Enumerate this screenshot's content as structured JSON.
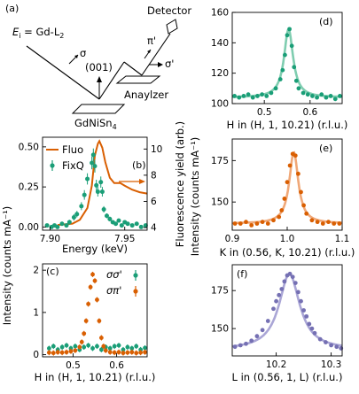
{
  "colors": {
    "green": "#1a9e77",
    "orange": "#d95f02",
    "purple": "#7570b3",
    "fit_green": "#7fcdb0",
    "fit_orange": "#f0a878",
    "fit_purple": "#aaa6d6"
  },
  "diagram": {
    "label": "(a)",
    "ei_label": "E",
    "ei_sub": "i",
    "ei_rest": " = Gd-L",
    "ei_sub2": "2",
    "sigma": "σ",
    "reflection": "(001)",
    "pi_prime": "π'",
    "sigma_prime": "σ'",
    "detector": "Detector",
    "analyzer": "Anaylzer",
    "sample": "GdNiSn",
    "sample_sub": "4"
  },
  "chart_data": [
    {
      "id": "b",
      "type": "line",
      "panel_label": "(b)",
      "xlabel": "Energy (keV)",
      "ylabel": "Intensity (counts mA⁻¹)",
      "ylabel2": "Fluorescence yield (arb.)",
      "xlim": [
        7.895,
        7.965
      ],
      "ylim": [
        -0.02,
        0.56
      ],
      "y2lim": [
        3.8,
        10.9
      ],
      "xticks": [
        "7.90",
        "7.95"
      ],
      "xtick_values": [
        7.9,
        7.95
      ],
      "yticks": [
        "0.00",
        "0.25",
        "0.50"
      ],
      "ytick_values": [
        0.0,
        0.25,
        0.5
      ],
      "y2ticks": [
        "4",
        "6",
        "8",
        "10"
      ],
      "y2tick_values": [
        4,
        6,
        8,
        10
      ],
      "legend": [
        "Fluo",
        "FixQ"
      ],
      "series": [
        {
          "name": "Fluo",
          "axis": "right",
          "x": [
            7.905,
            7.915,
            7.92,
            7.925,
            7.928,
            7.93,
            7.932,
            7.933,
            7.935,
            7.937,
            7.94,
            7.943,
            7.947,
            7.95,
            7.955,
            7.96,
            7.965
          ],
          "y": [
            4.2,
            4.3,
            4.6,
            5.5,
            7.2,
            9.5,
            10.4,
            10.6,
            10.1,
            9.0,
            7.8,
            7.4,
            7.4,
            7.2,
            6.9,
            6.7,
            6.6
          ]
        },
        {
          "name": "FixQ",
          "axis": "left",
          "x": [
            7.898,
            7.901,
            7.903,
            7.905,
            7.908,
            7.911,
            7.913,
            7.916,
            7.918,
            7.921,
            7.923,
            7.925,
            7.928,
            7.929,
            7.93,
            7.931,
            7.932,
            7.934,
            7.935,
            7.936,
            7.938,
            7.94,
            7.942,
            7.944,
            7.946,
            7.948,
            7.95,
            7.952,
            7.955,
            7.958,
            7.961,
            7.964
          ],
          "y": [
            0.01,
            0.0,
            0.01,
            0.0,
            0.02,
            0.01,
            0.03,
            0.06,
            0.08,
            0.13,
            0.2,
            0.3,
            0.4,
            0.45,
            0.38,
            0.26,
            0.22,
            0.28,
            0.22,
            0.11,
            0.07,
            0.05,
            0.03,
            0.02,
            0.04,
            0.01,
            0.03,
            0.02,
            0.01,
            0.02,
            0.0,
            0.01
          ],
          "err": [
            0.01,
            0.01,
            0.01,
            0.01,
            0.01,
            0.01,
            0.015,
            0.02,
            0.02,
            0.025,
            0.03,
            0.035,
            0.04,
            0.04,
            0.04,
            0.035,
            0.03,
            0.035,
            0.03,
            0.02,
            0.015,
            0.015,
            0.01,
            0.01,
            0.01,
            0.01,
            0.01,
            0.01,
            0.01,
            0.01,
            0.01,
            0.01
          ]
        }
      ]
    },
    {
      "id": "c",
      "type": "scatter",
      "panel_label": "(c)",
      "xlabel": "H in (H, 1, 10.21) (r.l.u.)",
      "ylabel": "Intensity (counts mA⁻¹)",
      "xlim": [
        0.43,
        0.67
      ],
      "ylim": [
        -0.05,
        2.15
      ],
      "xticks": [
        "0.5",
        "0.6"
      ],
      "xtick_values": [
        0.5,
        0.6
      ],
      "yticks": [
        "0",
        "1",
        "2"
      ],
      "ytick_values": [
        0,
        1,
        2
      ],
      "legend": [
        "σσ'",
        "σπ'"
      ],
      "series": [
        {
          "name": "σσ'",
          "x": [
            0.445,
            0.455,
            0.465,
            0.475,
            0.485,
            0.495,
            0.505,
            0.515,
            0.525,
            0.535,
            0.545,
            0.555,
            0.565,
            0.575,
            0.585,
            0.595,
            0.605,
            0.615,
            0.625,
            0.635,
            0.645,
            0.655,
            0.665
          ],
          "y": [
            0.15,
            0.2,
            0.12,
            0.18,
            0.22,
            0.15,
            0.2,
            0.12,
            0.18,
            0.22,
            0.15,
            0.2,
            0.12,
            0.18,
            0.15,
            0.2,
            0.22,
            0.12,
            0.18,
            0.15,
            0.2,
            0.12,
            0.16
          ]
        },
        {
          "name": "σπ'",
          "x": [
            0.445,
            0.455,
            0.465,
            0.475,
            0.485,
            0.495,
            0.505,
            0.515,
            0.52,
            0.525,
            0.53,
            0.535,
            0.54,
            0.545,
            0.55,
            0.555,
            0.56,
            0.565,
            0.57,
            0.575,
            0.585,
            0.595,
            0.605,
            0.615,
            0.625,
            0.635,
            0.645,
            0.655,
            0.665
          ],
          "y": [
            0.05,
            0.04,
            0.06,
            0.05,
            0.06,
            0.08,
            0.1,
            0.18,
            0.3,
            0.5,
            0.8,
            1.2,
            1.6,
            1.9,
            1.75,
            1.3,
            0.8,
            0.4,
            0.2,
            0.1,
            0.06,
            0.05,
            0.06,
            0.04,
            0.05,
            0.06,
            0.04,
            0.05,
            0.06
          ]
        }
      ]
    },
    {
      "id": "d",
      "type": "scatter",
      "panel_label": "(d)",
      "xlabel": "H in (H, 1, 10.21) (r.l.u.)",
      "xlim": [
        0.43,
        0.67
      ],
      "ylim": [
        100,
        160
      ],
      "xticks": [
        "0.5",
        "0.6"
      ],
      "xtick_values": [
        0.5,
        0.6
      ],
      "yticks": [
        "100",
        "120",
        "140",
        "160"
      ],
      "ytick_values": [
        100,
        120,
        140,
        160
      ],
      "fit": {
        "type": "lorentzian",
        "center": 0.553,
        "width": 0.012,
        "amplitude": 45,
        "background": 104
      },
      "series": [
        {
          "name": "",
          "x": [
            0.435,
            0.445,
            0.455,
            0.465,
            0.475,
            0.485,
            0.495,
            0.505,
            0.515,
            0.525,
            0.535,
            0.54,
            0.545,
            0.55,
            0.555,
            0.56,
            0.565,
            0.57,
            0.575,
            0.585,
            0.595,
            0.605,
            0.615,
            0.625,
            0.635,
            0.645,
            0.655,
            0.665
          ],
          "y": [
            105,
            104,
            105,
            106,
            104,
            105,
            106,
            105,
            107,
            110,
            116,
            122,
            132,
            145,
            149,
            138,
            124,
            115,
            110,
            107,
            106,
            105,
            104,
            106,
            104,
            105,
            103,
            105
          ]
        }
      ]
    },
    {
      "id": "e",
      "type": "scatter",
      "panel_label": "(e)",
      "xlabel": "K in (0.56, K, 10.21) (r.l.u.)",
      "ylabel": "Intensity (counts mA⁻¹)",
      "xlim": [
        0.9,
        1.1
      ],
      "ylim": [
        133,
        188
      ],
      "xticks": [
        "0.9",
        "1.0",
        "1.1"
      ],
      "xtick_values": [
        0.9,
        1.0,
        1.1
      ],
      "yticks": [
        "150",
        "175"
      ],
      "ytick_values": [
        150,
        175
      ],
      "fit": {
        "type": "lorentzian",
        "center": 1.012,
        "width": 0.01,
        "amplitude": 43,
        "background": 137
      },
      "series": [
        {
          "name": "",
          "x": [
            0.905,
            0.915,
            0.925,
            0.935,
            0.945,
            0.955,
            0.965,
            0.975,
            0.985,
            0.99,
            0.995,
            1.0,
            1.005,
            1.01,
            1.015,
            1.02,
            1.025,
            1.03,
            1.035,
            1.045,
            1.055,
            1.065,
            1.075,
            1.085,
            1.095
          ],
          "y": [
            137,
            137,
            138,
            136,
            137,
            138,
            137,
            139,
            141,
            145,
            152,
            162,
            172,
            179,
            178,
            167,
            156,
            148,
            143,
            139,
            138,
            137,
            138,
            137,
            137
          ]
        }
      ]
    },
    {
      "id": "f",
      "type": "scatter",
      "panel_label": "(f)",
      "xlabel": "L in (0.56, 1, L) (r.l.u.)",
      "xlim": [
        10.12,
        10.32
      ],
      "ylim": [
        132,
        192
      ],
      "xticks": [
        "10.2",
        "10.3"
      ],
      "xtick_values": [
        10.2,
        10.3
      ],
      "yticks": [
        "150",
        "175"
      ],
      "ytick_values": [
        150,
        175
      ],
      "fit": {
        "type": "lorentzian",
        "center": 10.224,
        "width": 0.023,
        "amplitude": 50,
        "background": 136
      },
      "series": [
        {
          "name": "",
          "x": [
            10.125,
            10.135,
            10.145,
            10.155,
            10.165,
            10.175,
            10.185,
            10.195,
            10.2,
            10.205,
            10.21,
            10.215,
            10.22,
            10.225,
            10.23,
            10.235,
            10.24,
            10.245,
            10.25,
            10.255,
            10.26,
            10.265,
            10.27,
            10.28,
            10.29,
            10.3,
            10.31,
            10.318
          ],
          "y": [
            138,
            139,
            140,
            142,
            145,
            149,
            155,
            163,
            168,
            172,
            176,
            181,
            185,
            186,
            184,
            180,
            174,
            168,
            162,
            158,
            153,
            150,
            147,
            143,
            141,
            139,
            138,
            137
          ]
        }
      ]
    }
  ]
}
